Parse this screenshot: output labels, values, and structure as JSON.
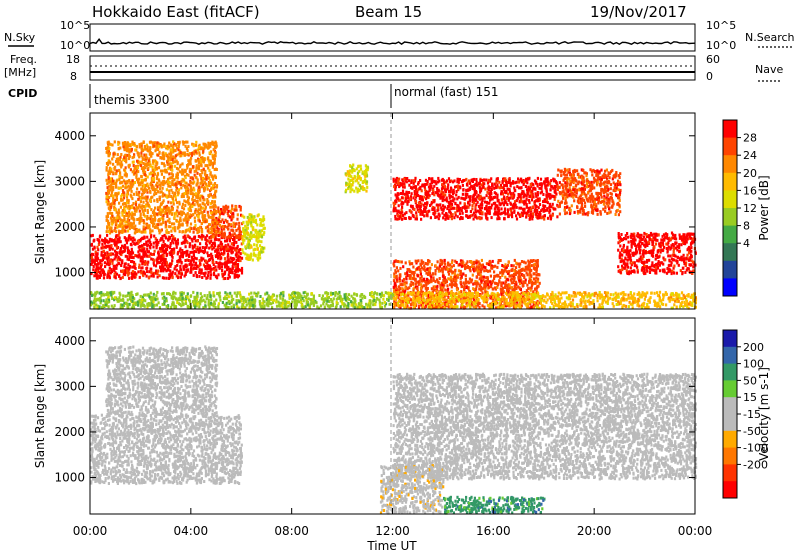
{
  "header": {
    "title": "Hokkaido East (fitACF)",
    "beam": "Beam 15",
    "date": "19/Nov/2017"
  },
  "strip_panels": {
    "nsky": {
      "label": "N.Sky",
      "ticks_left": [
        "10^5",
        "10^0"
      ],
      "ticks_right": [
        "10^5",
        "10^0"
      ],
      "right_label": "N.Search"
    },
    "freq": {
      "label_top": "Freq.",
      "label_bottom": "[MHz]",
      "ticks_left": [
        "18",
        "8"
      ],
      "ticks_right": [
        "60",
        "0"
      ],
      "right_label": "Nave"
    },
    "cpid": {
      "label": "CPID",
      "segments": [
        {
          "label": "themis 3300",
          "start_hour": 0
        },
        {
          "label": "normal (fast) 151",
          "start_hour": 12
        }
      ]
    }
  },
  "chart_data": [
    {
      "type": "heatmap",
      "name": "Power panel",
      "ylabel": "Slant Range [km]",
      "xlabel": "",
      "xlim": [
        0,
        24
      ],
      "ylim": [
        200,
        4500
      ],
      "yticks": [
        1000,
        2000,
        3000,
        4000
      ],
      "colorbar": {
        "label": "Power [dB]",
        "ticks": [
          "28",
          "24",
          "20",
          "16",
          "12",
          "8",
          "4"
        ],
        "colors": [
          "#ff0000",
          "#ff4400",
          "#ff8800",
          "#ffbb00",
          "#dddd00",
          "#99cc22",
          "#44aa44",
          "#337755",
          "#224499",
          "#0000ff"
        ]
      },
      "features": [
        {
          "t0": 0.0,
          "t1": 6.0,
          "r0": 900,
          "r1": 1850,
          "value": "28"
        },
        {
          "t0": 4.8,
          "t1": 6.0,
          "r0": 1800,
          "r1": 2500,
          "value": "24"
        },
        {
          "t0": 0.6,
          "t1": 5.0,
          "r0": 1900,
          "r1": 3900,
          "value": "20"
        },
        {
          "t0": 6.0,
          "t1": 6.9,
          "r0": 1300,
          "r1": 2300,
          "value": "12"
        },
        {
          "t0": 10.1,
          "t1": 11.0,
          "r0": 2800,
          "r1": 3400,
          "value": "12"
        },
        {
          "t0": 12.0,
          "t1": 18.5,
          "r0": 2200,
          "r1": 3100,
          "value": "28"
        },
        {
          "t0": 18.5,
          "t1": 21.0,
          "r0": 2300,
          "r1": 3300,
          "value": "24"
        },
        {
          "t0": 20.9,
          "t1": 24.0,
          "r0": 1000,
          "r1": 1900,
          "value": "28"
        },
        {
          "t0": 12.0,
          "t1": 17.8,
          "r0": 250,
          "r1": 1300,
          "value": "24"
        },
        {
          "t0": 0.0,
          "t1": 12.0,
          "r0": 250,
          "r1": 600,
          "value": "8"
        },
        {
          "t0": 12.0,
          "t1": 24.0,
          "r0": 250,
          "r1": 600,
          "value": "16"
        }
      ]
    },
    {
      "type": "heatmap",
      "name": "Velocity panel",
      "ylabel": "Slant Range [km]",
      "xlabel": "Time UT",
      "xlim": [
        0,
        24
      ],
      "ylim": [
        200,
        4500
      ],
      "yticks": [
        1000,
        2000,
        3000,
        4000
      ],
      "xticks": [
        "00:00",
        "04:00",
        "08:00",
        "12:00",
        "16:00",
        "20:00",
        "00:00"
      ],
      "colorbar": {
        "label": "Velocity [m s-1]",
        "ticks": [
          "200",
          "100",
          "50",
          "15",
          "-15",
          "-50",
          "-100",
          "-200"
        ],
        "colors": [
          "#1a1aaa",
          "#3366aa",
          "#339966",
          "#66cc33",
          "#bbbbbb",
          "#bbbbbb",
          "#ffaa00",
          "#ff7700",
          "#ff3300",
          "#ff0000"
        ]
      },
      "features": [
        {
          "t0": 0.0,
          "t1": 6.0,
          "r0": 900,
          "r1": 2400,
          "value": "0"
        },
        {
          "t0": 0.6,
          "t1": 5.0,
          "r0": 2400,
          "r1": 3900,
          "value": "0"
        },
        {
          "t0": 12.0,
          "t1": 24.0,
          "r0": 1000,
          "r1": 3300,
          "value": "0"
        },
        {
          "t0": 11.5,
          "t1": 14.0,
          "r0": 250,
          "r1": 1300,
          "value": "-50"
        },
        {
          "t0": 14.0,
          "t1": 18.0,
          "r0": 250,
          "r1": 600,
          "value": "50"
        }
      ]
    }
  ]
}
